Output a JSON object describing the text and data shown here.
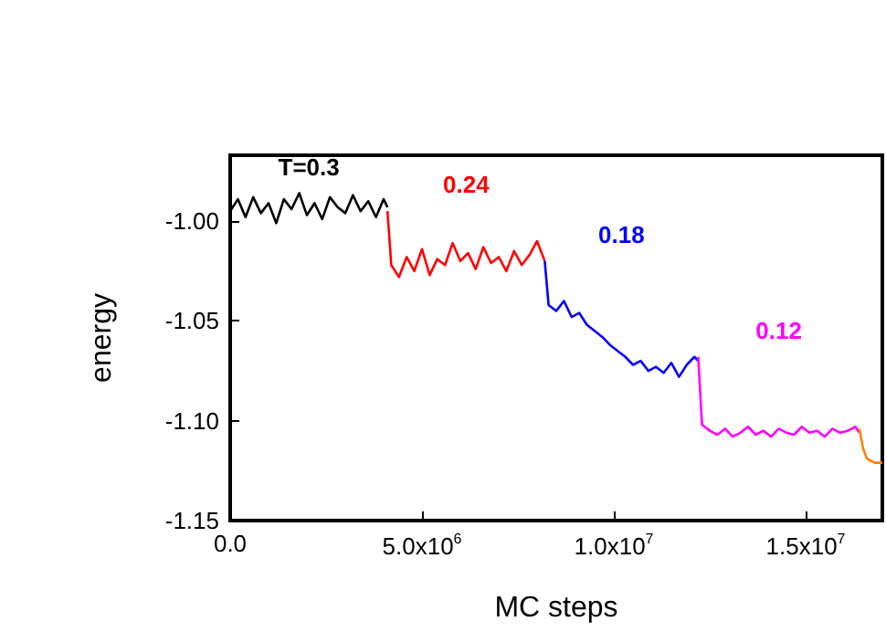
{
  "chart_data": {
    "type": "line",
    "xlabel": "MC steps",
    "ylabel": "energy",
    "xlim": [
      0,
      17000000
    ],
    "ylim": [
      -1.15,
      -0.967
    ],
    "xticks": [
      {
        "value": 0,
        "label": "0.0"
      },
      {
        "value": 5000000,
        "label": "5.0x10$^{6}$"
      },
      {
        "value": 10000000,
        "label": "1.0x10$^{7}$"
      },
      {
        "value": 15000000,
        "label": "1.5x10$^{7}$"
      }
    ],
    "yticks": [
      {
        "value": -1.15,
        "label": "-1.15"
      },
      {
        "value": -1.1,
        "label": "-1.10"
      },
      {
        "value": -1.05,
        "label": "-1.05"
      },
      {
        "value": -1.0,
        "label": "-1.00"
      }
    ],
    "grid": false,
    "legend": false,
    "marker": "none",
    "line_style": "solid",
    "series": [
      {
        "name": "T=0.3",
        "color": "#000000",
        "x": [
          0,
          200000,
          400000,
          600000,
          800000,
          1000000,
          1200000,
          1400000,
          1600000,
          1800000,
          2000000,
          2200000,
          2400000,
          2600000,
          2800000,
          3000000,
          3200000,
          3400000,
          3600000,
          3800000,
          4000000,
          4100000
        ],
        "values": [
          -0.995,
          -0.989,
          -0.998,
          -0.988,
          -0.996,
          -0.991,
          -1.001,
          -0.989,
          -0.994,
          -0.986,
          -0.997,
          -0.991,
          -0.999,
          -0.988,
          -0.993,
          -0.996,
          -0.987,
          -0.995,
          -0.99,
          -0.998,
          -0.989,
          -0.993
        ]
      },
      {
        "name": "0.24",
        "color": "#ff0000",
        "x": [
          4100000,
          4200000,
          4400000,
          4600000,
          4800000,
          5000000,
          5200000,
          5400000,
          5600000,
          5800000,
          6000000,
          6200000,
          6400000,
          6600000,
          6800000,
          7000000,
          7200000,
          7400000,
          7600000,
          7800000,
          8000000,
          8200000
        ],
        "values": [
          -0.995,
          -1.022,
          -1.028,
          -1.018,
          -1.025,
          -1.014,
          -1.027,
          -1.019,
          -1.022,
          -1.011,
          -1.02,
          -1.016,
          -1.024,
          -1.013,
          -1.021,
          -1.018,
          -1.025,
          -1.015,
          -1.022,
          -1.017,
          -1.01,
          -1.02
        ]
      },
      {
        "name": "0.18",
        "color": "#0000ff",
        "x": [
          8200000,
          8300000,
          8500000,
          8700000,
          8900000,
          9100000,
          9300000,
          9500000,
          9700000,
          9900000,
          10100000,
          10300000,
          10500000,
          10700000,
          10900000,
          11100000,
          11300000,
          11500000,
          11700000,
          11900000,
          12100000,
          12200000
        ],
        "values": [
          -1.02,
          -1.042,
          -1.045,
          -1.04,
          -1.048,
          -1.046,
          -1.052,
          -1.055,
          -1.058,
          -1.062,
          -1.065,
          -1.068,
          -1.072,
          -1.07,
          -1.075,
          -1.073,
          -1.076,
          -1.071,
          -1.078,
          -1.072,
          -1.068,
          -1.07
        ]
      },
      {
        "name": "0.12",
        "color": "#ff00ff",
        "x": [
          12200000,
          12300000,
          12500000,
          12700000,
          12900000,
          13100000,
          13300000,
          13500000,
          13700000,
          13900000,
          14100000,
          14300000,
          14500000,
          14700000,
          14900000,
          15100000,
          15300000,
          15500000,
          15700000,
          15900000,
          16100000,
          16300000,
          16400000
        ],
        "values": [
          -1.068,
          -1.102,
          -1.105,
          -1.107,
          -1.104,
          -1.108,
          -1.106,
          -1.103,
          -1.107,
          -1.105,
          -1.108,
          -1.104,
          -1.106,
          -1.107,
          -1.103,
          -1.106,
          -1.105,
          -1.108,
          -1.104,
          -1.106,
          -1.105,
          -1.103,
          -1.106
        ]
      },
      {
        "color": "#ff8000",
        "x": [
          16400000,
          16500000,
          16600000,
          16800000,
          17000000
        ],
        "values": [
          -1.104,
          -1.114,
          -1.119,
          -1.121,
          -1.121
        ]
      }
    ]
  }
}
